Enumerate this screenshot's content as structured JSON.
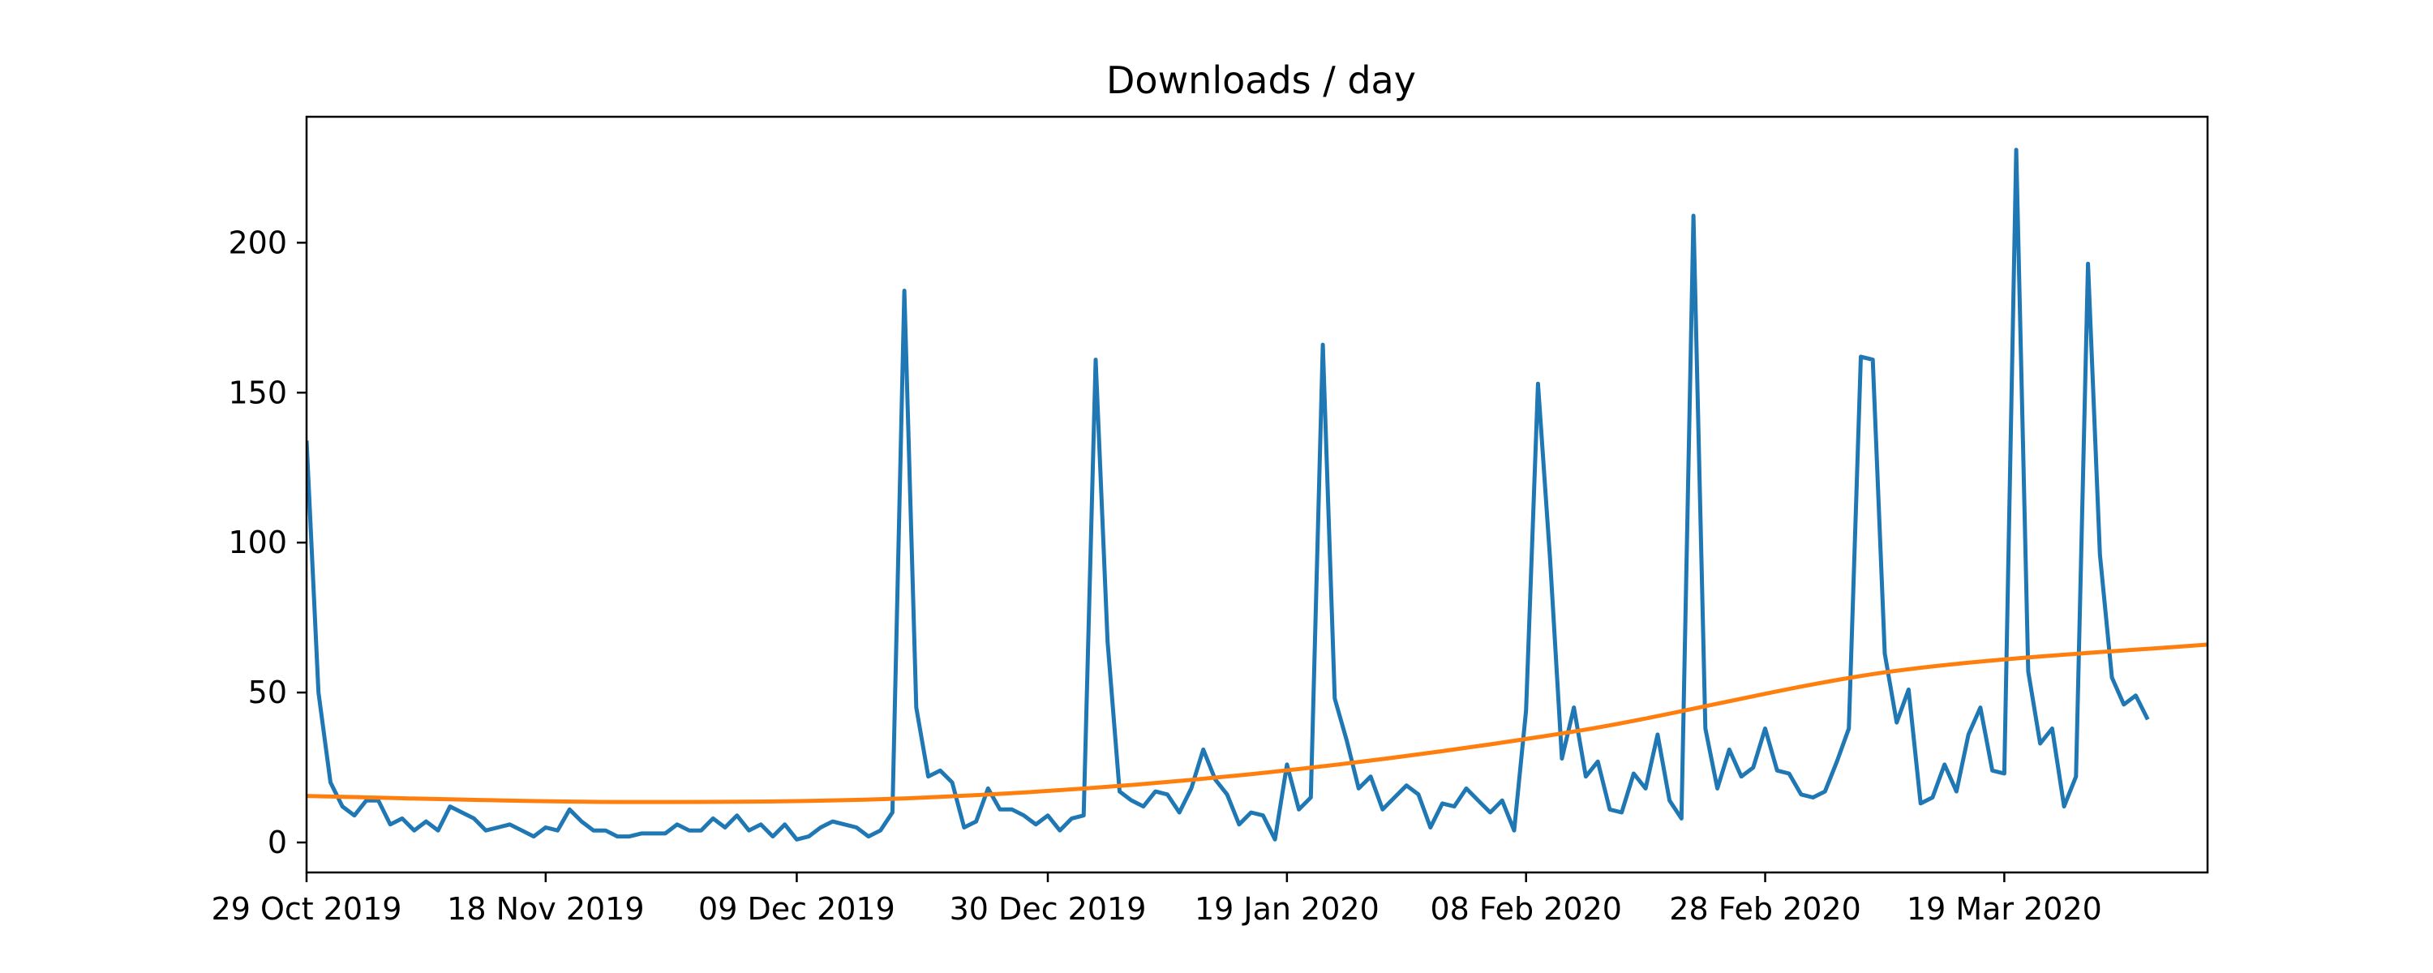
{
  "chart_data": {
    "type": "line",
    "title": "Downloads / day",
    "xlabel": "",
    "ylabel": "",
    "x_start": "2019-10-29",
    "x_ticks": [
      "29 Oct 2019",
      "18 Nov 2019",
      "09 Dec 2019",
      "30 Dec 2019",
      "19 Jan 2020",
      "08 Feb 2020",
      "28 Feb 2020",
      "19 Mar 2020"
    ],
    "x_tick_dates": [
      "2019-10-29",
      "2019-11-18",
      "2019-12-09",
      "2019-12-30",
      "2020-01-19",
      "2020-02-08",
      "2020-02-28",
      "2020-03-19"
    ],
    "xlim": [
      "2019-10-29",
      "2020-04-05"
    ],
    "ylim": [
      -10,
      242
    ],
    "y_ticks": [
      0,
      50,
      100,
      150,
      200
    ],
    "grid": false,
    "series": [
      {
        "color": "#1f77b4",
        "values": [
          134,
          50,
          20,
          12,
          9,
          14,
          14,
          6,
          8,
          4,
          7,
          4,
          12,
          10,
          8,
          4,
          5,
          6,
          4,
          2,
          5,
          4,
          11,
          7,
          4,
          4,
          2,
          2,
          3,
          3,
          3,
          6,
          4,
          4,
          8,
          5,
          9,
          4,
          6,
          2,
          6,
          1,
          2,
          5,
          7,
          6,
          5,
          2,
          4,
          10,
          184,
          45,
          22,
          24,
          20,
          5,
          7,
          18,
          11,
          11,
          9,
          6,
          9,
          4,
          8,
          9,
          161,
          67,
          17,
          14,
          12,
          17,
          16,
          10,
          18,
          31,
          21,
          16,
          6,
          10,
          9,
          1,
          26,
          11,
          15,
          166,
          48,
          34,
          18,
          22,
          11,
          15,
          19,
          16,
          5,
          13,
          12,
          18,
          14,
          10,
          14,
          4,
          44,
          153,
          95,
          28,
          45,
          22,
          27,
          11,
          10,
          23,
          18,
          36,
          14,
          8,
          209,
          38,
          18,
          31,
          22,
          25,
          38,
          24,
          23,
          16,
          15,
          17,
          27,
          38,
          162,
          161,
          63,
          40,
          51,
          13,
          15,
          26,
          17,
          36,
          45,
          24,
          23,
          231,
          57,
          33,
          38,
          12,
          22,
          193,
          96,
          55,
          46,
          49,
          41
        ]
      },
      {
        "color": "#ff7f0e",
        "trend": "quadratic",
        "values": [
          15.5,
          13.5,
          15.2,
          23.0,
          37.0,
          57.0,
          66.0
        ]
      }
    ]
  }
}
